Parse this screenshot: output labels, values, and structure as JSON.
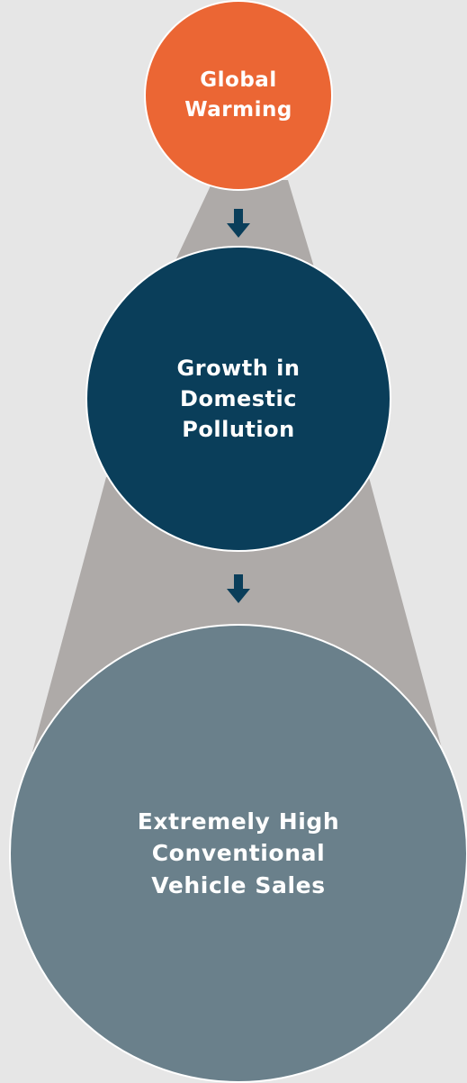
{
  "colors": {
    "background": "#e6e6e6",
    "cone": "#aeaaa8",
    "step1_fill": "#eb6634",
    "step2_fill": "#0a3e5a",
    "step3_fill": "#6a808b",
    "arrow": "#0a3e5a",
    "text": "#ffffff"
  },
  "steps": [
    {
      "label": "Global\nWarming"
    },
    {
      "label": "Growth in\nDomestic\nPollution"
    },
    {
      "label": "Extremely High\nConventional\nVehicle Sales"
    }
  ],
  "arrows": [
    {
      "icon": "arrow-down-icon"
    },
    {
      "icon": "arrow-down-icon"
    }
  ]
}
